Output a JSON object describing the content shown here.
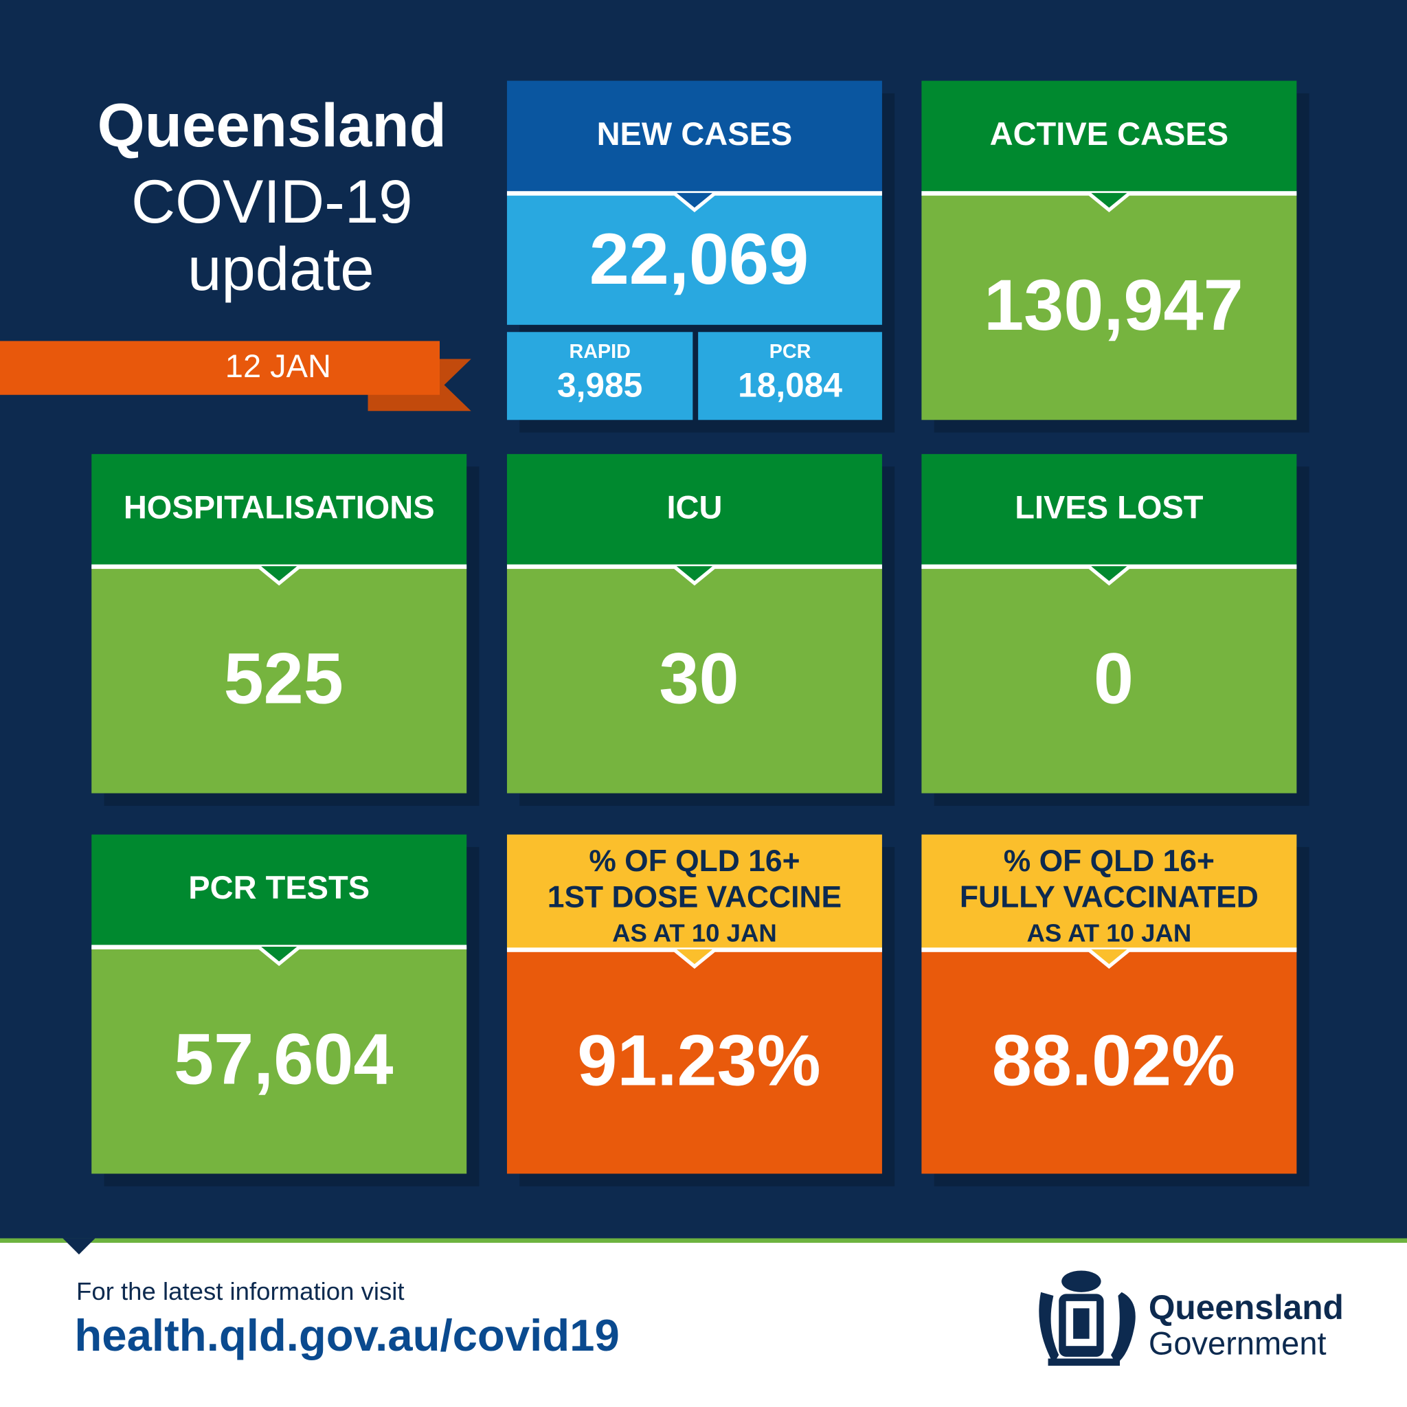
{
  "header": {
    "title_lines": [
      "Queensland",
      "COVID-19",
      "update"
    ],
    "date": "12 JAN"
  },
  "tiles": [
    {
      "label_lines": [
        "NEW CASES"
      ],
      "value": "22,069",
      "breakdown": [
        {
          "label": "RAPID",
          "value": "3,985"
        },
        {
          "label": "PCR",
          "value": "18,084"
        }
      ]
    },
    {
      "label_lines": [
        "ACTIVE CASES"
      ],
      "value": "130,947"
    },
    {
      "label_lines": [
        "HOSPITALISATIONS"
      ],
      "value": "525"
    },
    {
      "label_lines": [
        "ICU"
      ],
      "value": "30"
    },
    {
      "label_lines": [
        "LIVES LOST"
      ],
      "value": "0"
    },
    {
      "label_lines": [
        "PCR TESTS"
      ],
      "value": "57,604"
    },
    {
      "label_lines": [
        "% OF QLD 16+",
        "1ST DOSE VACCINE",
        "AS AT 10 JAN"
      ],
      "value": "91.23%"
    },
    {
      "label_lines": [
        "% OF QLD 16+",
        "FULLY VACCINATED",
        "AS AT 10 JAN"
      ],
      "value": "88.02%"
    }
  ],
  "footer": {
    "text": "For the latest information visit",
    "url": "health.qld.gov.au/covid19"
  },
  "logo": {
    "lines": [
      "Queensland",
      "Government"
    ]
  }
}
